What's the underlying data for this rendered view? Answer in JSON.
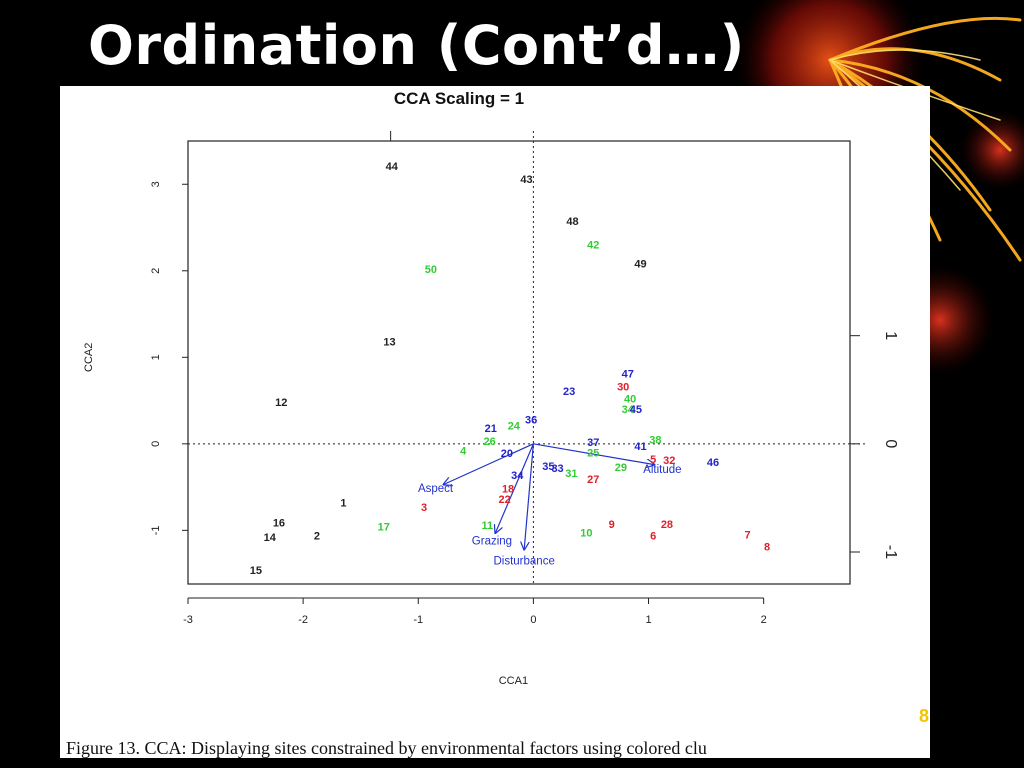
{
  "slide": {
    "title": "Ordination (Cont’d…)",
    "caption": "Figure 13. CCA: Displaying sites constrained by environmental factors using colored clu",
    "slide_number": "8"
  },
  "colors": {
    "black": "#222222",
    "green": "#33cc33",
    "blue": "#2222cc",
    "red": "#e01f2a",
    "arrow": "#2233cc"
  },
  "chart_data": {
    "type": "scatter",
    "title": "CCA Scaling = 1",
    "xlabel": "CCA1",
    "ylabel": "CCA2",
    "xlim": [
      -3.0,
      2.75
    ],
    "ylim": [
      -1.62,
      3.5
    ],
    "xticks": [
      -3,
      -2,
      -1,
      0,
      1,
      2
    ],
    "yticks": [
      -1,
      0,
      1,
      2,
      3
    ],
    "right_ticks": [
      -1,
      0,
      1
    ],
    "top_ticks": [
      -1
    ],
    "zero_lines": true,
    "grid": false,
    "sites": [
      {
        "label": "44",
        "x": -1.23,
        "y": 3.2,
        "group": "black"
      },
      {
        "label": "43",
        "x": -0.06,
        "y": 3.05,
        "group": "black"
      },
      {
        "label": "48",
        "x": 0.34,
        "y": 2.56,
        "group": "black"
      },
      {
        "label": "42",
        "x": 0.52,
        "y": 2.29,
        "group": "green"
      },
      {
        "label": "49",
        "x": 0.93,
        "y": 2.07,
        "group": "black"
      },
      {
        "label": "50",
        "x": -0.89,
        "y": 2.01,
        "group": "green"
      },
      {
        "label": "13",
        "x": -1.25,
        "y": 1.17,
        "group": "black"
      },
      {
        "label": "12",
        "x": -2.19,
        "y": 0.47,
        "group": "black"
      },
      {
        "label": "47",
        "x": 0.82,
        "y": 0.8,
        "group": "blue"
      },
      {
        "label": "30",
        "x": 0.78,
        "y": 0.65,
        "group": "red"
      },
      {
        "label": "23",
        "x": 0.31,
        "y": 0.6,
        "group": "blue"
      },
      {
        "label": "40",
        "x": 0.84,
        "y": 0.51,
        "group": "green"
      },
      {
        "label": "34",
        "x": 0.82,
        "y": 0.39,
        "group": "green"
      },
      {
        "label": "45",
        "x": 0.89,
        "y": 0.39,
        "group": "blue"
      },
      {
        "label": "36",
        "x": -0.02,
        "y": 0.27,
        "group": "blue"
      },
      {
        "label": "24",
        "x": -0.17,
        "y": 0.2,
        "group": "green"
      },
      {
        "label": "21",
        "x": -0.37,
        "y": 0.17,
        "group": "blue"
      },
      {
        "label": "26",
        "x": -0.38,
        "y": 0.02,
        "group": "green"
      },
      {
        "label": "38",
        "x": 1.06,
        "y": 0.04,
        "group": "green"
      },
      {
        "label": "37",
        "x": 0.52,
        "y": 0.01,
        "group": "blue"
      },
      {
        "label": "41",
        "x": 0.93,
        "y": -0.04,
        "group": "blue"
      },
      {
        "label": "4",
        "x": -0.61,
        "y": -0.09,
        "group": "green"
      },
      {
        "label": "20",
        "x": -0.23,
        "y": -0.12,
        "group": "blue"
      },
      {
        "label": "25",
        "x": 0.52,
        "y": -0.11,
        "group": "green"
      },
      {
        "label": "5",
        "x": 1.04,
        "y": -0.19,
        "group": "red"
      },
      {
        "label": "32",
        "x": 1.18,
        "y": -0.2,
        "group": "red"
      },
      {
        "label": "46",
        "x": 1.56,
        "y": -0.22,
        "group": "blue"
      },
      {
        "label": "35",
        "x": 0.13,
        "y": -0.27,
        "group": "blue"
      },
      {
        "label": "33",
        "x": 0.21,
        "y": -0.29,
        "group": "blue"
      },
      {
        "label": "29",
        "x": 0.76,
        "y": -0.28,
        "group": "green"
      },
      {
        "label": "31",
        "x": 0.33,
        "y": -0.35,
        "group": "green"
      },
      {
        "label": "34",
        "x": -0.14,
        "y": -0.37,
        "group": "blue"
      },
      {
        "label": "27",
        "x": 0.52,
        "y": -0.42,
        "group": "red"
      },
      {
        "label": "18",
        "x": -0.22,
        "y": -0.53,
        "group": "red"
      },
      {
        "label": "22",
        "x": -0.25,
        "y": -0.65,
        "group": "red"
      },
      {
        "label": "1",
        "x": -1.65,
        "y": -0.69,
        "group": "black"
      },
      {
        "label": "3",
        "x": -0.95,
        "y": -0.74,
        "group": "red"
      },
      {
        "label": "16",
        "x": -2.21,
        "y": -0.92,
        "group": "black"
      },
      {
        "label": "17",
        "x": -1.3,
        "y": -0.97,
        "group": "green"
      },
      {
        "label": "11",
        "x": -0.4,
        "y": -0.95,
        "group": "green"
      },
      {
        "label": "9",
        "x": 0.68,
        "y": -0.94,
        "group": "red"
      },
      {
        "label": "28",
        "x": 1.16,
        "y": -0.94,
        "group": "red"
      },
      {
        "label": "14",
        "x": -2.29,
        "y": -1.09,
        "group": "black"
      },
      {
        "label": "2",
        "x": -1.88,
        "y": -1.07,
        "group": "black"
      },
      {
        "label": "10",
        "x": 0.46,
        "y": -1.04,
        "group": "green"
      },
      {
        "label": "6",
        "x": 1.04,
        "y": -1.07,
        "group": "red"
      },
      {
        "label": "7",
        "x": 1.86,
        "y": -1.06,
        "group": "red"
      },
      {
        "label": "8",
        "x": 2.03,
        "y": -1.2,
        "group": "red"
      },
      {
        "label": "15",
        "x": -2.41,
        "y": -1.47,
        "group": "black"
      }
    ],
    "arrows": [
      {
        "label": "Aspect",
        "x": -0.78,
        "y": -0.47,
        "label_x": -0.85,
        "label_y": -0.52
      },
      {
        "label": "Grazing",
        "x": -0.33,
        "y": -1.03,
        "label_x": -0.36,
        "label_y": -1.13
      },
      {
        "label": "Disturbance",
        "x": -0.08,
        "y": -1.22,
        "label_x": -0.08,
        "label_y": -1.36
      },
      {
        "label": "Altitude",
        "x": 1.05,
        "y": -0.24,
        "label_x": 1.12,
        "label_y": -0.3
      }
    ]
  }
}
